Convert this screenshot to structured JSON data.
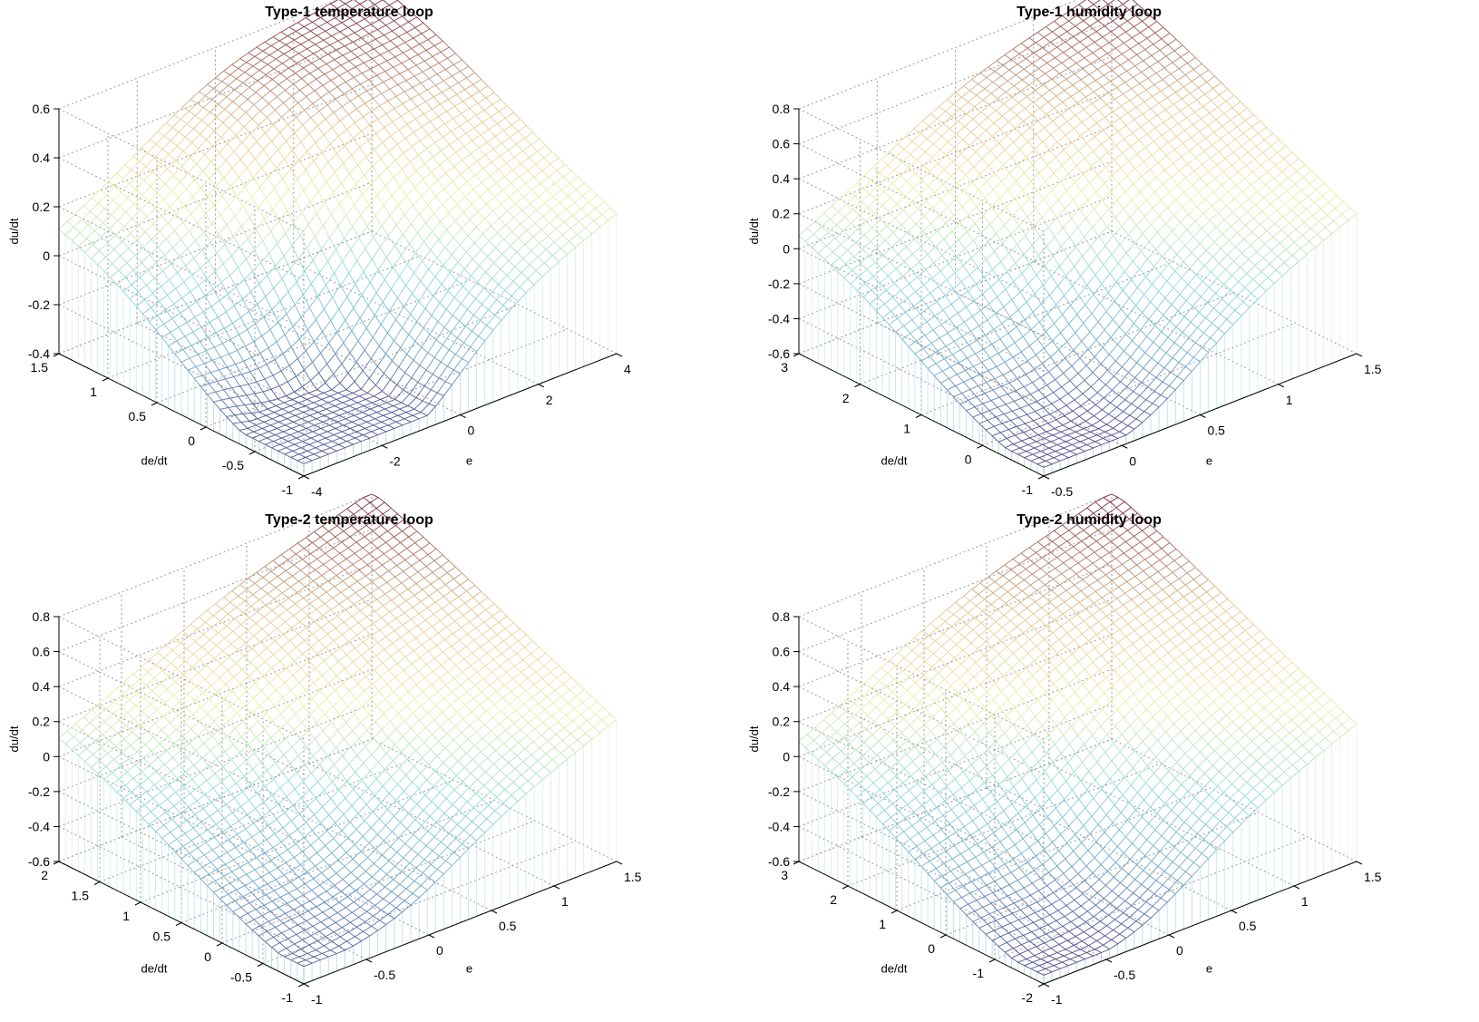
{
  "figure": {
    "zlabel": "du/dt",
    "ylabel": "de/dt",
    "xlabel": "e"
  },
  "chart_data": [
    {
      "type": "surface",
      "title": "Type-1 temperature loop",
      "xlabel": "e",
      "ylabel": "de/dt",
      "zlabel": "du/dt",
      "xlim": [
        -4,
        4
      ],
      "ylim": [
        -1,
        1.5
      ],
      "zlim": [
        -0.4,
        0.6
      ],
      "xticks": [
        "-4",
        "-2",
        "0",
        "2",
        "4"
      ],
      "yticks": [
        "-1",
        "-0.5",
        "0",
        "0.5",
        "1",
        "1.5"
      ],
      "zticks": [
        "-0.4",
        "-0.2",
        "0",
        "0.2",
        "0.4",
        "0.6"
      ],
      "grid": true,
      "surface_shape": {
        "x_min": -0.35,
        "x_max": 0.05,
        "y_min": -0.4,
        "y_max": 0.6,
        "ridge": 0.35,
        "twist": 0.15
      }
    },
    {
      "type": "surface",
      "title": "Type-1 humidity loop",
      "xlabel": "e",
      "ylabel": "de/dt",
      "zlabel": "du/dt",
      "xlim": [
        -0.5,
        1.5
      ],
      "ylim": [
        -1,
        3
      ],
      "zlim": [
        -0.6,
        0.8
      ],
      "xticks": [
        "-0.5",
        "0",
        "0.5",
        "1",
        "1.5"
      ],
      "yticks": [
        "-1",
        "0",
        "1",
        "2",
        "3"
      ],
      "zticks": [
        "-0.6",
        "-0.4",
        "-0.2",
        "0",
        "0.2",
        "0.4",
        "0.6",
        "0.8"
      ],
      "grid": true,
      "surface_shape": {
        "x_min": -0.55,
        "x_max": 0.1,
        "y_min": 0.4,
        "y_max": 0.8,
        "ridge": 0.3,
        "twist": 0.25
      }
    },
    {
      "type": "surface",
      "title": "Type-2 temperature loop",
      "xlabel": "e",
      "ylabel": "de/dt",
      "zlabel": "du/dt",
      "xlim": [
        -1,
        1.5
      ],
      "ylim": [
        -1,
        2
      ],
      "zlim": [
        -0.6,
        0.8
      ],
      "xticks": [
        "-1",
        "-0.5",
        "0",
        "0.5",
        "1",
        "1.5"
      ],
      "yticks": [
        "-1",
        "-0.5",
        "0",
        "0.5",
        "1",
        "1.5",
        "2"
      ],
      "zticks": [
        "-0.6",
        "-0.4",
        "-0.2",
        "0",
        "0.2",
        "0.4",
        "0.6",
        "0.8"
      ],
      "grid": true,
      "surface_shape": {
        "x_min": -0.5,
        "x_max": 0.1,
        "y_min": 0.1,
        "y_max": 0.8,
        "ridge": 0.2,
        "twist": 0.2
      }
    },
    {
      "type": "surface",
      "title": "Type-2 humidity loop",
      "xlabel": "e",
      "ylabel": "de/dt",
      "zlabel": "du/dt",
      "xlim": [
        -1,
        1.5
      ],
      "ylim": [
        -2,
        3
      ],
      "zlim": [
        -0.6,
        0.8
      ],
      "xticks": [
        "-1",
        "-0.5",
        "0",
        "0.5",
        "1",
        "1.5"
      ],
      "yticks": [
        "-2",
        "-1",
        "0",
        "1",
        "2",
        "3"
      ],
      "zticks": [
        "-0.6",
        "-0.4",
        "-0.2",
        "0",
        "0.2",
        "0.4",
        "0.6",
        "0.8"
      ],
      "grid": true,
      "surface_shape": {
        "x_min": -0.55,
        "x_max": -0.1,
        "y_min": 0.1,
        "y_max": 0.8,
        "ridge": 0.25,
        "twist": 0.2
      }
    }
  ]
}
